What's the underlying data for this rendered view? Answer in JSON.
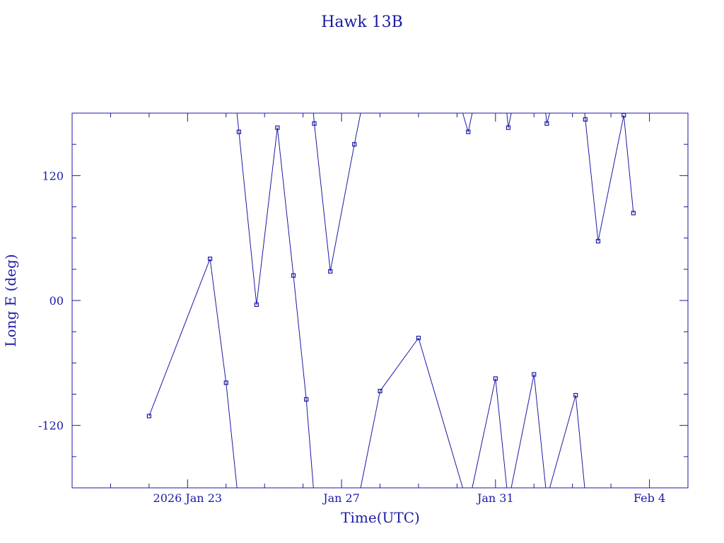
{
  "chart_data": {
    "type": "line",
    "title": "Hawk 13B",
    "xlabel": "Time(UTC)",
    "ylabel": "Long E (deg)",
    "xlim": [
      "2026-01-20",
      "2026-02-05"
    ],
    "ylim": [
      -180,
      180
    ],
    "x_tick_labels": [
      {
        "date": "2026-01-23",
        "label": "2026 Jan 23"
      },
      {
        "date": "2026-01-27",
        "label": "Jan 27"
      },
      {
        "date": "2026-01-31",
        "label": "Jan 31"
      },
      {
        "date": "2026-02-04",
        "label": "Feb  4"
      }
    ],
    "y_tick_labels": [
      {
        "value": 120,
        "label": "120"
      },
      {
        "value": 0,
        "label": "00"
      },
      {
        "value": -120,
        "label": "-120"
      }
    ],
    "grid": false,
    "series": [
      {
        "marker": "square",
        "points": [
          {
            "x": "2026-01-22 00:00",
            "y": -111
          },
          {
            "x": "2026-01-23 14:00",
            "y": 40
          },
          {
            "x": "2026-01-24 00:00",
            "y": -79
          },
          {
            "x": "2026-01-24 08:00",
            "y": 162
          },
          {
            "x": "2026-01-24 19:00",
            "y": -4
          },
          {
            "x": "2026-01-25 08:00",
            "y": 166
          },
          {
            "x": "2026-01-25 18:00",
            "y": 24
          },
          {
            "x": "2026-01-26 02:00",
            "y": -95
          },
          {
            "x": "2026-01-26 07:00",
            "y": 170
          },
          {
            "x": "2026-01-26 17:00",
            "y": 28
          },
          {
            "x": "2026-01-27 08:00",
            "y": 150
          },
          {
            "x": "2026-01-28 00:00",
            "y": -87
          },
          {
            "x": "2026-01-29 00:00",
            "y": -36
          },
          {
            "x": "2026-01-30 07:00",
            "y": 162
          },
          {
            "x": "2026-01-31 00:00",
            "y": -75
          },
          {
            "x": "2026-01-31 08:00",
            "y": 166
          },
          {
            "x": "2026-02-01 00:00",
            "y": -71
          },
          {
            "x": "2026-02-01 08:00",
            "y": 170
          },
          {
            "x": "2026-02-02 02:00",
            "y": -91
          },
          {
            "x": "2026-02-02 08:00",
            "y": 174
          },
          {
            "x": "2026-02-02 16:00",
            "y": 57
          },
          {
            "x": "2026-02-03 08:00",
            "y": 178
          },
          {
            "x": "2026-02-03 14:00",
            "y": 84
          }
        ]
      }
    ]
  }
}
